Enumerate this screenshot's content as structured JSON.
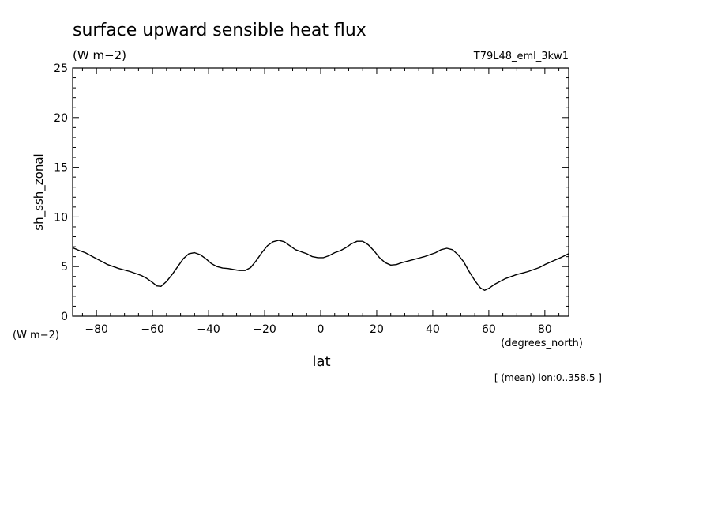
{
  "chart_data": {
    "type": "line",
    "title": "surface upward sensible heat flux",
    "units": "(W m−2)",
    "run_label": "T79L48_eml_3kw1",
    "ylabel": "sh_ssh_zonal",
    "y_units": "(W m−2)",
    "xlabel": "lat",
    "x_units": "(degrees_north)",
    "footnote": "[ (mean) lon:0..358.5 ]",
    "xlim": [
      -88.5,
      88.5
    ],
    "ylim": [
      0,
      25
    ],
    "x_ticks": [
      -80,
      -60,
      -40,
      -20,
      0,
      20,
      40,
      60,
      80
    ],
    "y_ticks": [
      0,
      5,
      10,
      15,
      20,
      25
    ],
    "grid": false,
    "series": [
      {
        "x": [
          -88.5,
          -86,
          -84,
          -80,
          -76,
          -72,
          -68,
          -64,
          -62,
          -60,
          -58.5,
          -57,
          -55,
          -53,
          -51,
          -49,
          -47,
          -45,
          -43,
          -41,
          -39,
          -37,
          -35,
          -33,
          -31,
          -29,
          -27,
          -25,
          -23,
          -21,
          -19,
          -17,
          -15,
          -13,
          -11,
          -9,
          -7,
          -5,
          -3,
          -1,
          1,
          3,
          5,
          7,
          9,
          11,
          13,
          15,
          17,
          19,
          21,
          23,
          25,
          27,
          29,
          31,
          33,
          35,
          37,
          39,
          41,
          43,
          45,
          47,
          49,
          51,
          53,
          55,
          57,
          58.5,
          60,
          62,
          64,
          66,
          68,
          70,
          72,
          74,
          76,
          78,
          80,
          82,
          84,
          86,
          88.5
        ],
        "y": [
          6.9,
          6.6,
          6.4,
          5.8,
          5.2,
          4.8,
          4.5,
          4.1,
          3.8,
          3.4,
          3.05,
          3.0,
          3.5,
          4.2,
          5.0,
          5.8,
          6.3,
          6.4,
          6.2,
          5.8,
          5.3,
          5.0,
          4.85,
          4.8,
          4.7,
          4.6,
          4.6,
          4.9,
          5.6,
          6.4,
          7.1,
          7.5,
          7.65,
          7.5,
          7.1,
          6.7,
          6.5,
          6.3,
          6.0,
          5.9,
          5.9,
          6.1,
          6.4,
          6.6,
          6.9,
          7.3,
          7.55,
          7.55,
          7.2,
          6.6,
          5.9,
          5.4,
          5.15,
          5.2,
          5.4,
          5.55,
          5.7,
          5.85,
          6.0,
          6.2,
          6.4,
          6.7,
          6.85,
          6.7,
          6.2,
          5.5,
          4.5,
          3.6,
          2.85,
          2.6,
          2.8,
          3.2,
          3.5,
          3.8,
          4.0,
          4.2,
          4.35,
          4.5,
          4.7,
          4.9,
          5.2,
          5.45,
          5.7,
          5.95,
          6.3
        ]
      }
    ]
  }
}
